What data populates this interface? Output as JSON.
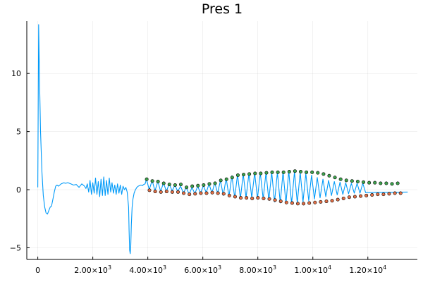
{
  "chart_data": {
    "type": "line",
    "title": "Pres 1",
    "xlabel": "",
    "ylabel": "",
    "xlim": [
      -400,
      13800
    ],
    "ylim": [
      -6,
      14.5
    ],
    "grid": true,
    "legend": "none",
    "x_ticks": [
      0,
      2000,
      4000,
      6000,
      8000,
      10000,
      12000
    ],
    "x_tick_labels": [
      {
        "text": "0",
        "mantissa": "",
        "exp": ""
      },
      {
        "text": "",
        "mantissa": "2.00×10",
        "exp": "3"
      },
      {
        "text": "",
        "mantissa": "4.00×10",
        "exp": "3"
      },
      {
        "text": "",
        "mantissa": "6.00×10",
        "exp": "3"
      },
      {
        "text": "",
        "mantissa": "8.00×10",
        "exp": "3"
      },
      {
        "text": "",
        "mantissa": "1.00×10",
        "exp": "4"
      },
      {
        "text": "",
        "mantissa": "1.20×10",
        "exp": "4"
      }
    ],
    "y_ticks": [
      -5,
      0,
      5,
      10
    ],
    "y_tick_labels": [
      "−5",
      "0",
      "5",
      "10"
    ],
    "colors": {
      "line": "#009af9",
      "peaks": "#3da44d",
      "troughs": "#e26f46",
      "marker_edge": "#000000"
    },
    "series": [
      {
        "kind": "line",
        "x": [
          0,
          30,
          60,
          100,
          150,
          200,
          250,
          300,
          350,
          400,
          450,
          500,
          550,
          600,
          650,
          700,
          750,
          800,
          850,
          900,
          950,
          1000,
          1100,
          1200,
          1300,
          1400,
          1500,
          1600,
          1700,
          1750,
          1800,
          1850,
          1900,
          1950,
          2000,
          2050,
          2100,
          2150,
          2200,
          2250,
          2300,
          2350,
          2400,
          2450,
          2500,
          2550,
          2600,
          2650,
          2700,
          2750,
          2800,
          2850,
          2900,
          2950,
          3000,
          3050,
          3100,
          3150,
          3200,
          3250,
          3300,
          3320,
          3340,
          3360,
          3380,
          3400,
          3430,
          3460,
          3500,
          3550,
          3600,
          3650,
          3700,
          3750,
          3800,
          3850,
          3900
        ],
        "y": [
          0.2,
          14.2,
          10,
          5,
          1.5,
          -0.5,
          -1.5,
          -2.0,
          -2.1,
          -1.8,
          -1.5,
          -1.4,
          -0.8,
          -0.2,
          0.3,
          0.4,
          0.3,
          0.4,
          0.5,
          0.55,
          0.6,
          0.55,
          0.6,
          0.5,
          0.4,
          0.45,
          0.2,
          0.5,
          0.3,
          0.1,
          0.5,
          -0.2,
          0.8,
          -0.4,
          0.6,
          -0.3,
          1.0,
          -0.4,
          0.7,
          -0.6,
          0.9,
          -0.5,
          1.1,
          -0.5,
          0.8,
          -0.4,
          1.0,
          -0.2,
          0.6,
          -0.3,
          0.4,
          -0.4,
          0.5,
          -0.3,
          0.4,
          -0.4,
          0.3,
          0.0,
          0.2,
          -0.2,
          -1.5,
          -3.5,
          -5.2,
          -5.5,
          -4.8,
          -3.0,
          -1.5,
          -0.8,
          -0.3,
          0.0,
          0.2,
          0.3,
          0.35,
          0.4,
          0.35,
          0.45,
          0.5
        ]
      },
      {
        "kind": "oscillation",
        "x_start": 3950,
        "x_step": 207,
        "peaks": [
          0.9,
          0.8,
          0.7,
          0.6,
          0.5,
          0.4,
          0.3,
          0.2,
          0.2,
          0.3,
          0.35,
          0.5,
          0.6,
          0.8,
          1.0,
          1.2,
          1.3,
          1.35,
          1.4,
          1.45,
          1.45,
          1.5,
          1.5,
          1.5,
          1.55,
          1.6,
          1.55,
          1.5,
          1.4,
          1.25,
          1.05,
          0.9,
          0.8,
          0.7,
          0.65,
          0.6,
          0.55,
          0.55,
          0.55
        ],
        "troughs": [
          0.0,
          -0.1,
          -0.15,
          -0.15,
          -0.1,
          -0.15,
          -0.3,
          -0.4,
          -0.35,
          -0.3,
          -0.25,
          -0.3,
          -0.3,
          -0.5,
          -0.6,
          -0.7,
          -0.75,
          -0.7,
          -0.7,
          -0.75,
          -0.8,
          -0.9,
          -1.05,
          -1.15,
          -1.2,
          -1.2,
          -1.15,
          -1.05,
          -0.95,
          -0.8,
          -0.7,
          -0.6,
          -0.5,
          -0.45,
          -0.4,
          -0.35,
          -0.3,
          -0.3,
          -0.25
        ],
        "x_end_tail": 13450,
        "y_end_tail": -0.2
      }
    ],
    "peak_markers": {
      "x": [
        3960,
        4165,
        4370,
        4578,
        4785,
        4993,
        5200,
        5408,
        5615,
        5823,
        6030,
        6238,
        6445,
        6653,
        6860,
        7068,
        7275,
        7483,
        7690,
        7898,
        8105,
        8313,
        8520,
        8728,
        8935,
        9143,
        9350,
        9558,
        9765,
        9973,
        10180,
        10388,
        10595,
        10803,
        11010,
        11218,
        11425,
        11633,
        11840,
        12048,
        12255,
        12463,
        12670,
        12878,
        13085
      ],
      "y": [
        0.9,
        0.75,
        0.7,
        0.55,
        0.45,
        0.4,
        0.45,
        0.2,
        0.3,
        0.35,
        0.4,
        0.5,
        0.55,
        0.8,
        0.9,
        1.05,
        1.25,
        1.3,
        1.35,
        1.4,
        1.4,
        1.45,
        1.5,
        1.5,
        1.5,
        1.55,
        1.6,
        1.55,
        1.5,
        1.5,
        1.45,
        1.35,
        1.2,
        1.05,
        0.9,
        0.8,
        0.75,
        0.7,
        0.65,
        0.6,
        0.6,
        0.55,
        0.55,
        0.5,
        0.55
      ]
    },
    "trough_markers": {
      "x": [
        4060,
        4268,
        4475,
        4683,
        4890,
        5098,
        5305,
        5513,
        5720,
        5928,
        6135,
        6343,
        6550,
        6758,
        6965,
        7173,
        7380,
        7588,
        7795,
        8003,
        8210,
        8418,
        8625,
        8833,
        9040,
        9248,
        9455,
        9663,
        9870,
        10078,
        10285,
        10493,
        10700,
        10908,
        11115,
        11323,
        11530,
        11738,
        11945,
        12153,
        12360,
        12568,
        12775,
        12983,
        13190
      ],
      "y": [
        -0.05,
        -0.15,
        -0.2,
        -0.15,
        -0.2,
        -0.2,
        -0.3,
        -0.4,
        -0.35,
        -0.3,
        -0.3,
        -0.25,
        -0.3,
        -0.35,
        -0.5,
        -0.6,
        -0.7,
        -0.7,
        -0.75,
        -0.7,
        -0.75,
        -0.8,
        -0.9,
        -1.0,
        -1.1,
        -1.15,
        -1.2,
        -1.2,
        -1.15,
        -1.1,
        -1.05,
        -1.0,
        -0.95,
        -0.85,
        -0.75,
        -0.65,
        -0.6,
        -0.55,
        -0.5,
        -0.45,
        -0.4,
        -0.4,
        -0.35,
        -0.3,
        -0.3
      ]
    }
  }
}
